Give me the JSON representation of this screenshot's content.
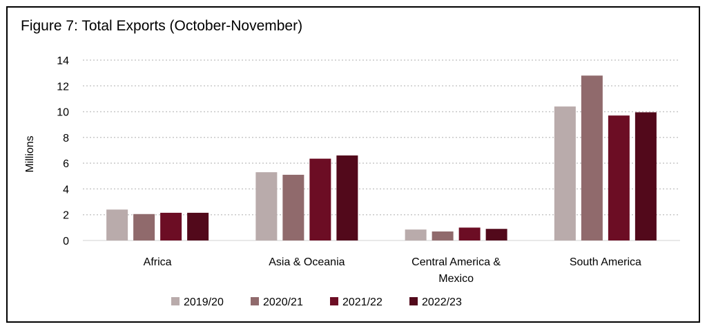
{
  "chart_data": {
    "type": "bar",
    "title": "Figure 7: Total Exports (October-November)",
    "ylabel": "Millions",
    "xlabel": "",
    "ylim": [
      0,
      14
    ],
    "yticks": [
      0,
      2,
      4,
      6,
      8,
      10,
      12,
      14
    ],
    "grid": true,
    "legend_position": "bottom",
    "categories": [
      [
        "Africa"
      ],
      [
        "Asia & Oceania"
      ],
      [
        "Central America &",
        "Mexico"
      ],
      [
        "South America"
      ]
    ],
    "series": [
      {
        "name": "2019/20",
        "color": "#b9abab",
        "values": [
          2.4,
          5.3,
          0.85,
          10.4
        ]
      },
      {
        "name": "2020/21",
        "color": "#906a6c",
        "values": [
          2.05,
          5.1,
          0.7,
          12.8
        ]
      },
      {
        "name": "2021/22",
        "color": "#6c0d24",
        "values": [
          2.15,
          6.35,
          1.0,
          9.7
        ]
      },
      {
        "name": "2022/23",
        "color": "#52091b",
        "values": [
          2.15,
          6.6,
          0.9,
          9.95
        ]
      }
    ]
  }
}
